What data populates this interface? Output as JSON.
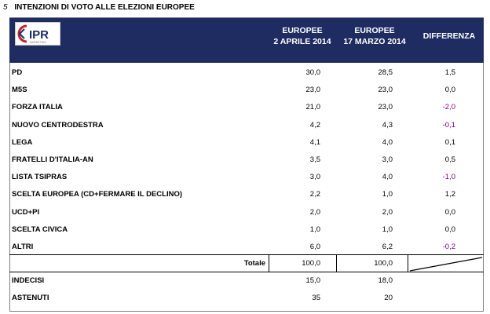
{
  "page": {
    "number": "5",
    "title": "INTENZIONI DI VOTO ALLE ELEZIONI EUROPEE"
  },
  "logo": {
    "text": "IPR",
    "subtext": "MARKETING"
  },
  "header": {
    "col1_line1": "EUROPEE",
    "col1_line2": "2 APRILE 2014",
    "col2_line1": "EUROPEE",
    "col2_line2": "17 MARZO 2014",
    "col3": "DIFFERENZA"
  },
  "rows": [
    {
      "label": "PD",
      "apr": "30,0",
      "mar": "28,5",
      "diff": "1,5"
    },
    {
      "label": "M5S",
      "apr": "23,0",
      "mar": "23,0",
      "diff": "0,0"
    },
    {
      "label": "FORZA ITALIA",
      "apr": "21,0",
      "mar": "23,0",
      "diff": "-2,0"
    },
    {
      "label": "NUOVO CENTRODESTRA",
      "apr": "4,2",
      "mar": "4,3",
      "diff": "-0,1"
    },
    {
      "label": "LEGA",
      "apr": "4,1",
      "mar": "4,0",
      "diff": "0,1"
    },
    {
      "label": "FRATELLI D'ITALIA-AN",
      "apr": "3,5",
      "mar": "3,0",
      "diff": "0,5"
    },
    {
      "label": "LISTA TSIPRAS",
      "apr": "3,0",
      "mar": "4,0",
      "diff": "-1,0"
    },
    {
      "label": "SCELTA EUROPEA (CD+FERMARE IL DECLINO)",
      "apr": "2,2",
      "mar": "1,0",
      "diff": "1,2"
    },
    {
      "label": "UCD+PI",
      "apr": "2,0",
      "mar": "2,0",
      "diff": "0,0"
    },
    {
      "label": "SCELTA CIVICA",
      "apr": "1,0",
      "mar": "1,0",
      "diff": "0,0"
    },
    {
      "label": "ALTRI",
      "apr": "6,0",
      "mar": "6,2",
      "diff": "-0,2"
    }
  ],
  "totale": {
    "label": "Totale",
    "apr": "100,0",
    "mar": "100,0"
  },
  "footer_rows": [
    {
      "label": "INDECISI",
      "apr": "15,0",
      "mar": "18,0"
    },
    {
      "label": "ASTENUTI",
      "apr": "35",
      "mar": "20"
    }
  ],
  "colors": {
    "header_bg": "#1f2c62",
    "negative": "#800080",
    "logo_red": "#c0222b"
  }
}
